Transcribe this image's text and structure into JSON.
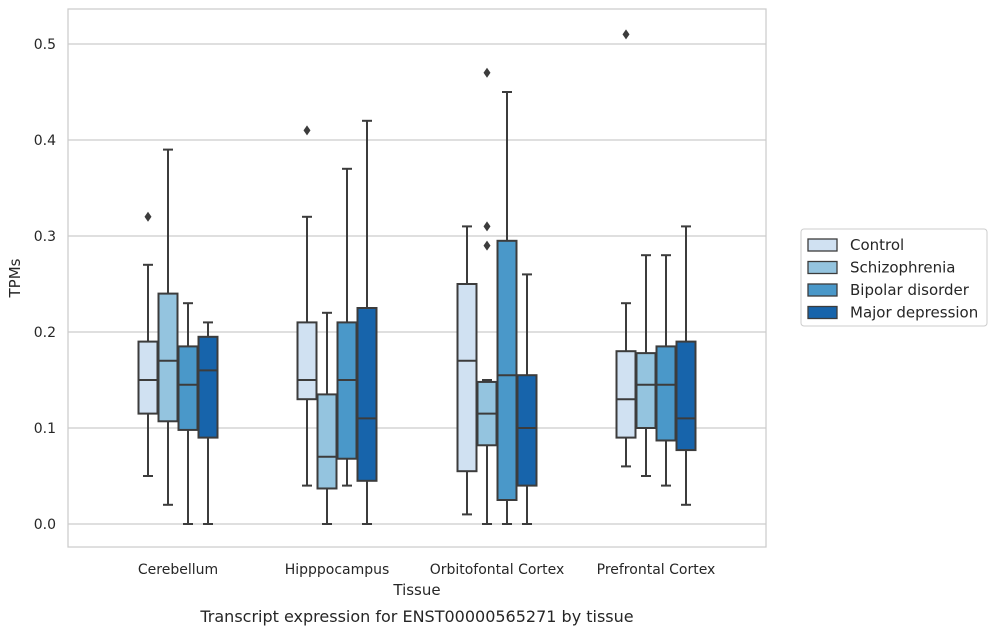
{
  "chart_data": {
    "type": "box",
    "categories": [
      "Cerebellum",
      "Hipppocampus",
      "Orbitofontal Cortex",
      "Prefrontal Cortex"
    ],
    "xlabel": "Tissue",
    "ylabel": "TPMs",
    "caption": "Transcript expression for ENST00000565271 by tissue",
    "ylim": [
      -0.025,
      0.537
    ],
    "yticks": [
      0.0,
      0.1,
      0.2,
      0.3,
      0.4,
      0.5
    ],
    "ytick_labels": [
      "0.0",
      "0.1",
      "0.2",
      "0.3",
      "0.4",
      "0.5"
    ],
    "grid": "horizontal",
    "legend_position": "right",
    "series": [
      {
        "name": "Control",
        "color": "#d0e1f2",
        "boxes": [
          {
            "whisker_low": 0.05,
            "q1": 0.115,
            "median": 0.15,
            "q3": 0.19,
            "whisker_high": 0.27,
            "outliers": [
              0.32
            ]
          },
          {
            "whisker_low": 0.04,
            "q1": 0.13,
            "median": 0.15,
            "q3": 0.21,
            "whisker_high": 0.32,
            "outliers": [
              0.41
            ]
          },
          {
            "whisker_low": 0.01,
            "q1": 0.055,
            "median": 0.17,
            "q3": 0.25,
            "whisker_high": 0.31,
            "outliers": []
          },
          {
            "whisker_low": 0.06,
            "q1": 0.09,
            "median": 0.13,
            "q3": 0.18,
            "whisker_high": 0.23,
            "outliers": [
              0.51
            ]
          }
        ]
      },
      {
        "name": "Schizophrenia",
        "color": "#94c4df",
        "boxes": [
          {
            "whisker_low": 0.02,
            "q1": 0.107,
            "median": 0.17,
            "q3": 0.24,
            "whisker_high": 0.39,
            "outliers": []
          },
          {
            "whisker_low": 0.0,
            "q1": 0.037,
            "median": 0.07,
            "q3": 0.135,
            "whisker_high": 0.22,
            "outliers": []
          },
          {
            "whisker_low": 0.0,
            "q1": 0.082,
            "median": 0.115,
            "q3": 0.148,
            "whisker_high": 0.15,
            "outliers": [
              0.29,
              0.31,
              0.47
            ]
          },
          {
            "whisker_low": 0.05,
            "q1": 0.1,
            "median": 0.145,
            "q3": 0.178,
            "whisker_high": 0.28,
            "outliers": []
          }
        ]
      },
      {
        "name": "Bipolar disorder",
        "color": "#4a98c9",
        "boxes": [
          {
            "whisker_low": 0.0,
            "q1": 0.098,
            "median": 0.145,
            "q3": 0.185,
            "whisker_high": 0.23,
            "outliers": []
          },
          {
            "whisker_low": 0.04,
            "q1": 0.068,
            "median": 0.15,
            "q3": 0.21,
            "whisker_high": 0.37,
            "outliers": []
          },
          {
            "whisker_low": 0.0,
            "q1": 0.025,
            "median": 0.155,
            "q3": 0.295,
            "whisker_high": 0.45,
            "outliers": []
          },
          {
            "whisker_low": 0.04,
            "q1": 0.087,
            "median": 0.145,
            "q3": 0.185,
            "whisker_high": 0.28,
            "outliers": []
          }
        ]
      },
      {
        "name": "Major depression",
        "color": "#1764ab",
        "boxes": [
          {
            "whisker_low": 0.0,
            "q1": 0.09,
            "median": 0.16,
            "q3": 0.195,
            "whisker_high": 0.21,
            "outliers": []
          },
          {
            "whisker_low": 0.0,
            "q1": 0.045,
            "median": 0.11,
            "q3": 0.225,
            "whisker_high": 0.42,
            "outliers": []
          },
          {
            "whisker_low": 0.0,
            "q1": 0.04,
            "median": 0.1,
            "q3": 0.155,
            "whisker_high": 0.26,
            "outliers": []
          },
          {
            "whisker_low": 0.02,
            "q1": 0.077,
            "median": 0.11,
            "q3": 0.19,
            "whisker_high": 0.31,
            "outliers": []
          }
        ]
      }
    ]
  }
}
